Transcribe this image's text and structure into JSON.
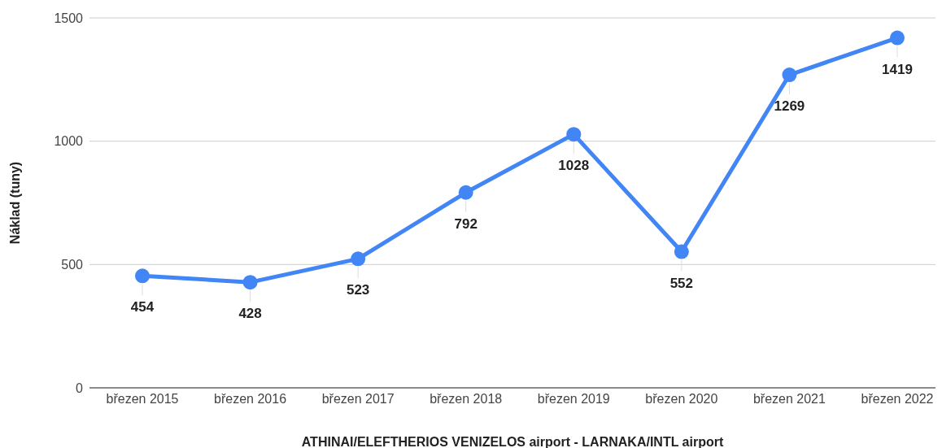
{
  "chart_data": {
    "type": "line",
    "xlabel": "ATHINAI/ELEFTHERIOS VENIZELOS airport - LARNAKA/INTL airport",
    "ylabel": "Náklad (tuny)",
    "categories": [
      "březen 2015",
      "březen 2016",
      "březen 2017",
      "březen 2018",
      "březen 2019",
      "březen 2020",
      "březen 2021",
      "březen 2022"
    ],
    "series": [
      {
        "color": "#4285f4",
        "values": [
          454,
          428,
          523,
          792,
          1028,
          552,
          1269,
          1419
        ]
      }
    ],
    "ylim": [
      0,
      1500
    ],
    "yticks": [
      0,
      500,
      1000,
      1500
    ],
    "grid": "y",
    "marker": "circle",
    "data_labels": true,
    "legend": false
  }
}
